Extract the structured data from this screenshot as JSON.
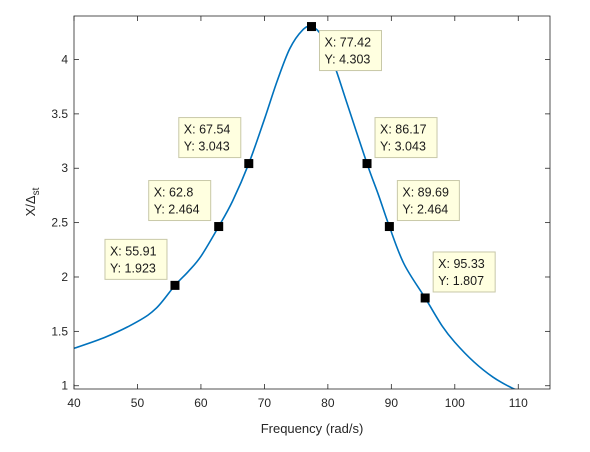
{
  "chart_data": {
    "type": "line",
    "title": "",
    "xlabel": "Frequency (rad/s)",
    "ylabel": "X/Δ",
    "ylabel_subscript": "st",
    "xlim": [
      40,
      115
    ],
    "ylim": [
      0.97,
      4.4
    ],
    "xticks": [
      40,
      50,
      60,
      70,
      80,
      90,
      100,
      110
    ],
    "yticks": [
      1,
      1.5,
      2,
      2.5,
      3,
      3.5,
      4
    ],
    "grid": false,
    "line_color": "#0072bd",
    "series": [
      {
        "x": [
          40,
          45,
          50,
          53,
          55.91,
          58,
          60,
          62.8,
          65,
          67.54,
          70,
          72,
          74,
          76,
          77.42,
          79,
          81,
          83,
          86.17,
          88,
          89.69,
          92,
          95.33,
          98,
          100,
          103,
          106,
          109,
          111.3
        ],
        "y": [
          1.344,
          1.448,
          1.59,
          1.715,
          1.923,
          2.05,
          2.19,
          2.464,
          2.7,
          3.043,
          3.45,
          3.8,
          4.1,
          4.27,
          4.303,
          4.22,
          3.95,
          3.6,
          3.043,
          2.75,
          2.464,
          2.12,
          1.807,
          1.55,
          1.4,
          1.22,
          1.08,
          0.98,
          0.93
        ]
      }
    ],
    "datatips": [
      {
        "x": 55.91,
        "y": 1.923,
        "x_label": "X: 55.91",
        "y_label": "Y: 1.923",
        "placement": "upper-left"
      },
      {
        "x": 62.8,
        "y": 2.464,
        "x_label": "X: 62.8",
        "y_label": "Y: 2.464",
        "placement": "upper-left"
      },
      {
        "x": 67.54,
        "y": 3.043,
        "x_label": "X: 67.54",
        "y_label": "Y: 3.043",
        "placement": "upper-left"
      },
      {
        "x": 77.42,
        "y": 4.303,
        "x_label": "X: 77.42",
        "y_label": "Y: 4.303",
        "placement": "lower-right"
      },
      {
        "x": 86.17,
        "y": 3.043,
        "x_label": "X: 86.17",
        "y_label": "Y: 3.043",
        "placement": "upper-right"
      },
      {
        "x": 89.69,
        "y": 2.464,
        "x_label": "X: 89.69",
        "y_label": "Y: 2.464",
        "placement": "upper-right"
      },
      {
        "x": 95.33,
        "y": 1.807,
        "x_label": "X: 95.33",
        "y_label": "Y: 1.807",
        "placement": "upper-right"
      }
    ]
  }
}
